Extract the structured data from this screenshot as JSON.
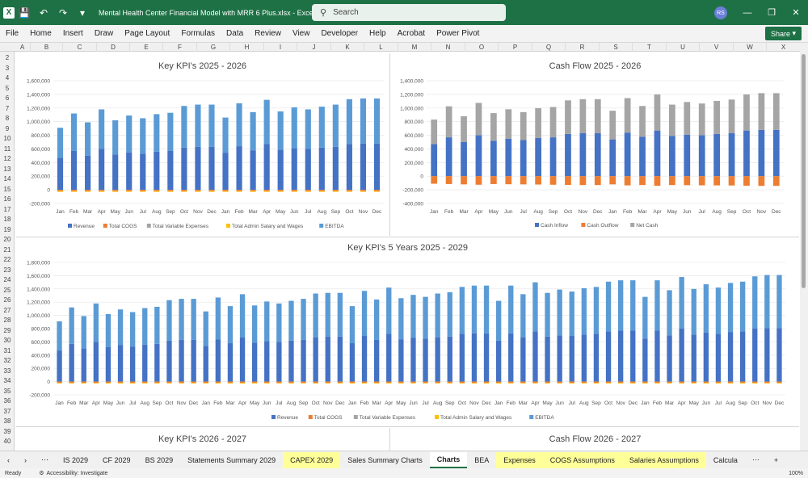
{
  "titlebar": {
    "title": "Mental Health Center Financial Model with MRR 6 Plus.xlsx  -  Excel",
    "search_placeholder": "Search",
    "avatar": "RS"
  },
  "menu": [
    "File",
    "Home",
    "Insert",
    "Draw",
    "Page Layout",
    "Formulas",
    "Data",
    "Review",
    "View",
    "Developer",
    "Help",
    "Acrobat",
    "Power Pivot"
  ],
  "share_label": "Share",
  "columns": [
    "A",
    "B",
    "C",
    "D",
    "E",
    "F",
    "G",
    "H",
    "I",
    "J",
    "K",
    "L",
    "M",
    "N",
    "O",
    "P",
    "Q",
    "R",
    "S",
    "T",
    "U",
    "V",
    "W",
    "X"
  ],
  "rows": [
    "2",
    "3",
    "4",
    "5",
    "6",
    "7",
    "8",
    "9",
    "10",
    "11",
    "12",
    "13",
    "14",
    "15",
    "16",
    "17",
    "18",
    "19",
    "20",
    "21",
    "22",
    "23",
    "24",
    "25",
    "26",
    "27",
    "28",
    "29",
    "30",
    "31",
    "32",
    "33",
    "34",
    "35",
    "36",
    "37",
    "38",
    "39",
    "40"
  ],
  "chart_data": [
    {
      "type": "bar",
      "title": "Key KPI's 2025 - 2026",
      "categories": [
        "Jan",
        "Feb",
        "Mar",
        "Apr",
        "May",
        "Jun",
        "Jul",
        "Aug",
        "Sep",
        "Oct",
        "Nov",
        "Dec",
        "Jan",
        "Feb",
        "Mar",
        "Apr",
        "May",
        "Jun",
        "Jul",
        "Aug",
        "Sep",
        "Oct",
        "Nov",
        "Dec"
      ],
      "yticks": [
        "1,600,000",
        "1,400,000",
        "1,200,000",
        "1,000,000",
        "800,000",
        "600,000",
        "400,000",
        "200,000",
        "0",
        "-200,000"
      ],
      "ylim": [
        -200000,
        1600000
      ],
      "legend_position": "bottom",
      "series": [
        {
          "name": "Revenue",
          "color": "#4472c4",
          "values": [
            470000,
            570000,
            500000,
            600000,
            520000,
            550000,
            530000,
            560000,
            570000,
            620000,
            630000,
            630000,
            540000,
            640000,
            580000,
            670000,
            590000,
            610000,
            600000,
            620000,
            630000,
            670000,
            680000,
            680000
          ]
        },
        {
          "name": "Total COGS",
          "color": "#ed7d31",
          "values": [
            -20000,
            -20000,
            -20000,
            -20000,
            -20000,
            -20000,
            -20000,
            -20000,
            -20000,
            -20000,
            -20000,
            -20000,
            -20000,
            -20000,
            -20000,
            -20000,
            -20000,
            -20000,
            -20000,
            -20000,
            -20000,
            -20000,
            -20000,
            -20000
          ]
        },
        {
          "name": "Total Variable Expenses",
          "color": "#a5a5a5",
          "values": [
            0,
            0,
            0,
            0,
            0,
            0,
            0,
            0,
            0,
            0,
            0,
            0,
            0,
            0,
            0,
            0,
            0,
            0,
            0,
            0,
            0,
            0,
            0,
            0
          ]
        },
        {
          "name": "Total Admin Salary and Wages",
          "color": "#ffc000",
          "values": [
            -10000,
            -10000,
            -10000,
            -10000,
            -10000,
            -10000,
            -10000,
            -10000,
            -10000,
            -10000,
            -10000,
            -10000,
            -10000,
            -10000,
            -10000,
            -10000,
            -10000,
            -10000,
            -10000,
            -10000,
            -10000,
            -10000,
            -10000,
            -10000
          ]
        },
        {
          "name": "EBITDA",
          "color": "#5b9bd5",
          "values": [
            440000,
            550000,
            490000,
            580000,
            500000,
            540000,
            520000,
            550000,
            560000,
            610000,
            620000,
            620000,
            520000,
            630000,
            560000,
            650000,
            560000,
            600000,
            580000,
            600000,
            620000,
            660000,
            660000,
            660000
          ]
        }
      ]
    },
    {
      "type": "bar",
      "title": "Cash Flow 2025 - 2026",
      "categories": [
        "Jan",
        "Feb",
        "Mar",
        "Apr",
        "May",
        "Jun",
        "Jul",
        "Aug",
        "Sep",
        "Oct",
        "Nov",
        "Dec",
        "Jan",
        "Feb",
        "Mar",
        "Apr",
        "May",
        "Jun",
        "Jul",
        "Aug",
        "Sep",
        "Oct",
        "Nov",
        "Dec"
      ],
      "yticks": [
        "1,400,000",
        "1,200,000",
        "1,000,000",
        "800,000",
        "600,000",
        "400,000",
        "200,000",
        "0",
        "-200,000",
        "-400,000"
      ],
      "ylim": [
        -400000,
        1400000
      ],
      "legend_position": "bottom",
      "series": [
        {
          "name": "Cash Inflow",
          "color": "#4472c4",
          "values": [
            470000,
            570000,
            500000,
            600000,
            520000,
            550000,
            530000,
            560000,
            570000,
            620000,
            630000,
            630000,
            540000,
            640000,
            580000,
            670000,
            590000,
            610000,
            600000,
            620000,
            630000,
            670000,
            680000,
            680000
          ]
        },
        {
          "name": "Cash Outflow",
          "color": "#ed7d31",
          "values": [
            -110000,
            -115000,
            -120000,
            -125000,
            -115000,
            -118000,
            -120000,
            -122000,
            -125000,
            -128000,
            -130000,
            -130000,
            -120000,
            -135000,
            -130000,
            -140000,
            -130000,
            -132000,
            -134000,
            -135000,
            -136000,
            -140000,
            -142000,
            -142000
          ]
        },
        {
          "name": "Net Cash",
          "color": "#a5a5a5",
          "values": [
            360000,
            455000,
            380000,
            475000,
            405000,
            432000,
            410000,
            438000,
            445000,
            492000,
            500000,
            500000,
            420000,
            505000,
            450000,
            530000,
            460000,
            478000,
            466000,
            485000,
            494000,
            530000,
            538000,
            538000
          ]
        }
      ]
    },
    {
      "type": "bar",
      "title": "Key KPI's 5 Years 2025 - 2029",
      "categories": [
        "Jan",
        "Feb",
        "Mar",
        "Apr",
        "May",
        "Jun",
        "Jul",
        "Aug",
        "Sep",
        "Oct",
        "Nov",
        "Dec",
        "Jan",
        "Feb",
        "Mar",
        "Apr",
        "May",
        "Jun",
        "Jul",
        "Aug",
        "Sep",
        "Oct",
        "Nov",
        "Dec",
        "Jan",
        "Feb",
        "Mar",
        "Apr",
        "May",
        "Jun",
        "Jul",
        "Aug",
        "Sep",
        "Oct",
        "Nov",
        "Dec",
        "Jan",
        "Feb",
        "Mar",
        "Apr",
        "May",
        "Jun",
        "Jul",
        "Aug",
        "Sep",
        "Oct",
        "Nov",
        "Dec",
        "Jan",
        "Feb",
        "Mar",
        "Apr",
        "May",
        "Jun",
        "Jul",
        "Aug",
        "Sep",
        "Oct",
        "Nov",
        "Dec"
      ],
      "yticks": [
        "1,800,000",
        "1,600,000",
        "1,400,000",
        "1,200,000",
        "1,000,000",
        "800,000",
        "600,000",
        "400,000",
        "200,000",
        "0",
        "-200,000"
      ],
      "ylim": [
        -200000,
        1800000
      ],
      "legend_position": "bottom",
      "series": [
        {
          "name": "Revenue",
          "color": "#4472c4",
          "values": [
            470000,
            570000,
            500000,
            600000,
            520000,
            550000,
            530000,
            560000,
            570000,
            620000,
            630000,
            630000,
            540000,
            640000,
            580000,
            670000,
            590000,
            610000,
            600000,
            620000,
            630000,
            670000,
            680000,
            680000,
            580000,
            690000,
            630000,
            720000,
            640000,
            660000,
            650000,
            670000,
            680000,
            720000,
            730000,
            730000,
            620000,
            730000,
            670000,
            760000,
            680000,
            700000,
            690000,
            710000,
            720000,
            760000,
            770000,
            770000,
            650000,
            770000,
            700000,
            800000,
            710000,
            740000,
            720000,
            750000,
            760000,
            800000,
            810000,
            810000
          ]
        },
        {
          "name": "Total COGS",
          "color": "#ed7d31",
          "values": [
            -20000,
            -20000,
            -20000,
            -20000,
            -20000,
            -20000,
            -20000,
            -20000,
            -20000,
            -20000,
            -20000,
            -20000,
            -20000,
            -20000,
            -20000,
            -20000,
            -20000,
            -20000,
            -20000,
            -20000,
            -20000,
            -20000,
            -20000,
            -20000,
            -20000,
            -20000,
            -20000,
            -20000,
            -20000,
            -20000,
            -20000,
            -20000,
            -20000,
            -20000,
            -20000,
            -20000,
            -20000,
            -20000,
            -20000,
            -20000,
            -20000,
            -20000,
            -20000,
            -20000,
            -20000,
            -20000,
            -20000,
            -20000,
            -20000,
            -20000,
            -20000,
            -20000,
            -20000,
            -20000,
            -20000,
            -20000,
            -20000,
            -20000,
            -20000,
            -20000
          ]
        },
        {
          "name": "Total Variable Expenses",
          "color": "#a5a5a5",
          "values": [
            0,
            0,
            0,
            0,
            0,
            0,
            0,
            0,
            0,
            0,
            0,
            0,
            0,
            0,
            0,
            0,
            0,
            0,
            0,
            0,
            0,
            0,
            0,
            0,
            0,
            0,
            0,
            0,
            0,
            0,
            0,
            0,
            0,
            0,
            0,
            0,
            0,
            0,
            0,
            0,
            0,
            0,
            0,
            0,
            0,
            0,
            0,
            0,
            0,
            0,
            0,
            0,
            0,
            0,
            0,
            0,
            0,
            0,
            0,
            0
          ]
        },
        {
          "name": "Total Admin Salary and Wages",
          "color": "#ffc000",
          "values": [
            -10000,
            -10000,
            -10000,
            -10000,
            -10000,
            -10000,
            -10000,
            -10000,
            -10000,
            -10000,
            -10000,
            -10000,
            -10000,
            -10000,
            -10000,
            -10000,
            -10000,
            -10000,
            -10000,
            -10000,
            -10000,
            -10000,
            -10000,
            -10000,
            -10000,
            -10000,
            -10000,
            -10000,
            -10000,
            -10000,
            -10000,
            -10000,
            -10000,
            -10000,
            -10000,
            -10000,
            -10000,
            -10000,
            -10000,
            -10000,
            -10000,
            -10000,
            -10000,
            -10000,
            -10000,
            -10000,
            -10000,
            -10000,
            -10000,
            -10000,
            -10000,
            -10000,
            -10000,
            -10000,
            -10000,
            -10000,
            -10000,
            -10000,
            -10000,
            -10000
          ]
        },
        {
          "name": "EBITDA",
          "color": "#5b9bd5",
          "values": [
            440000,
            550000,
            490000,
            580000,
            500000,
            540000,
            520000,
            550000,
            560000,
            610000,
            620000,
            620000,
            520000,
            630000,
            560000,
            650000,
            560000,
            600000,
            580000,
            600000,
            620000,
            660000,
            660000,
            660000,
            560000,
            680000,
            610000,
            700000,
            620000,
            650000,
            630000,
            660000,
            670000,
            710000,
            720000,
            720000,
            600000,
            720000,
            650000,
            740000,
            660000,
            690000,
            670000,
            700000,
            710000,
            750000,
            760000,
            760000,
            630000,
            760000,
            680000,
            780000,
            690000,
            730000,
            700000,
            740000,
            750000,
            790000,
            800000,
            800000
          ]
        }
      ]
    },
    {
      "type": "bar",
      "title": "Key KPI's 2026 - 2027"
    },
    {
      "type": "bar",
      "title": "Cash Flow 2026 - 2027"
    }
  ],
  "tabs": [
    {
      "label": "IS 2029",
      "style": "normal"
    },
    {
      "label": "CF 2029",
      "style": "normal"
    },
    {
      "label": "BS 2029",
      "style": "normal"
    },
    {
      "label": "Statements Summary 2029",
      "style": "normal"
    },
    {
      "label": "CAPEX 2029",
      "style": "yellow"
    },
    {
      "label": "Sales Summary Charts",
      "style": "normal"
    },
    {
      "label": "Charts",
      "style": "active"
    },
    {
      "label": "BEA",
      "style": "normal"
    },
    {
      "label": "Expenses",
      "style": "yellow"
    },
    {
      "label": "COGS Assumptions",
      "style": "yellow"
    },
    {
      "label": "Salaries Assumptions",
      "style": "yellow"
    },
    {
      "label": "Calcula",
      "style": "normal"
    }
  ],
  "status": {
    "ready": "Ready",
    "accessibility": "Accessibility: Investigate",
    "zoom": "100%"
  }
}
